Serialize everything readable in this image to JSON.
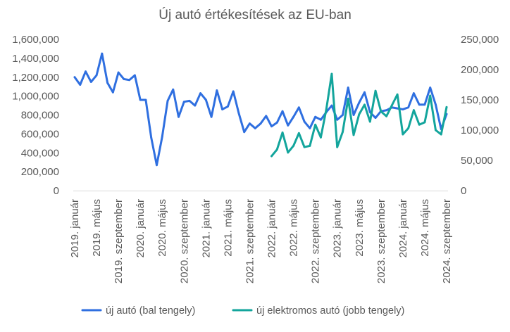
{
  "chart_data": {
    "type": "line",
    "title": "Új autó értékesítések  az EU-ban",
    "grid": false,
    "legend_position": "bottom",
    "x_axis": {
      "tick_labels": [
        "2019. január",
        "2019. május",
        "2019. szeptember",
        "2020. január",
        "2020. május",
        "2020. szeptember",
        "2021. január",
        "2021. május",
        "2021. szeptember",
        "2022. január",
        "2022. május",
        "2022. szeptember",
        "2023. január",
        "2023. május",
        "2023. szeptember",
        "2024. január",
        "2024. május",
        "2024. szeptember"
      ]
    },
    "y_left": {
      "ylim": [
        0,
        1600000
      ],
      "tick_labels": [
        "0",
        "200,000",
        "400,000",
        "600,000",
        "800,000",
        "1,000,000",
        "1,200,000",
        "1,400,000",
        "1,600,000"
      ]
    },
    "y_right": {
      "ylim": [
        0,
        250000
      ],
      "tick_labels": [
        "0",
        "50,000",
        "100,000",
        "150,000",
        "200,000",
        "250,000"
      ]
    },
    "series": [
      {
        "name": "új autó (bal tengely)",
        "axis": "left",
        "color": "#2f6fe0",
        "start_index": 0,
        "values": [
          1200000,
          1120000,
          1260000,
          1150000,
          1220000,
          1450000,
          1140000,
          1040000,
          1250000,
          1180000,
          1170000,
          1220000,
          960000,
          960000,
          560000,
          270000,
          570000,
          950000,
          1070000,
          780000,
          940000,
          950000,
          900000,
          1030000,
          960000,
          780000,
          1060000,
          860000,
          890000,
          1050000,
          820000,
          620000,
          710000,
          660000,
          710000,
          790000,
          680000,
          720000,
          840000,
          690000,
          780000,
          880000,
          730000,
          660000,
          780000,
          750000,
          830000,
          900000,
          750000,
          800000,
          1090000,
          800000,
          930000,
          1040000,
          830000,
          770000,
          840000,
          850000,
          880000,
          870000,
          860000,
          880000,
          1030000,
          910000,
          910000,
          1090000,
          910000,
          650000,
          810000
        ]
      },
      {
        "name": "új elektromos autó (jobb tengely)",
        "axis": "right",
        "color": "#13a59c",
        "start_index": 36,
        "values": [
          57000,
          68000,
          96000,
          63000,
          74000,
          95000,
          72000,
          74000,
          109000,
          88000,
          134000,
          193000,
          72000,
          97000,
          152000,
          92000,
          126000,
          142000,
          114000,
          165000,
          131000,
          123000,
          141000,
          159000,
          93000,
          103000,
          133000,
          109000,
          113000,
          157000,
          100000,
          93000,
          138000
        ]
      }
    ]
  }
}
